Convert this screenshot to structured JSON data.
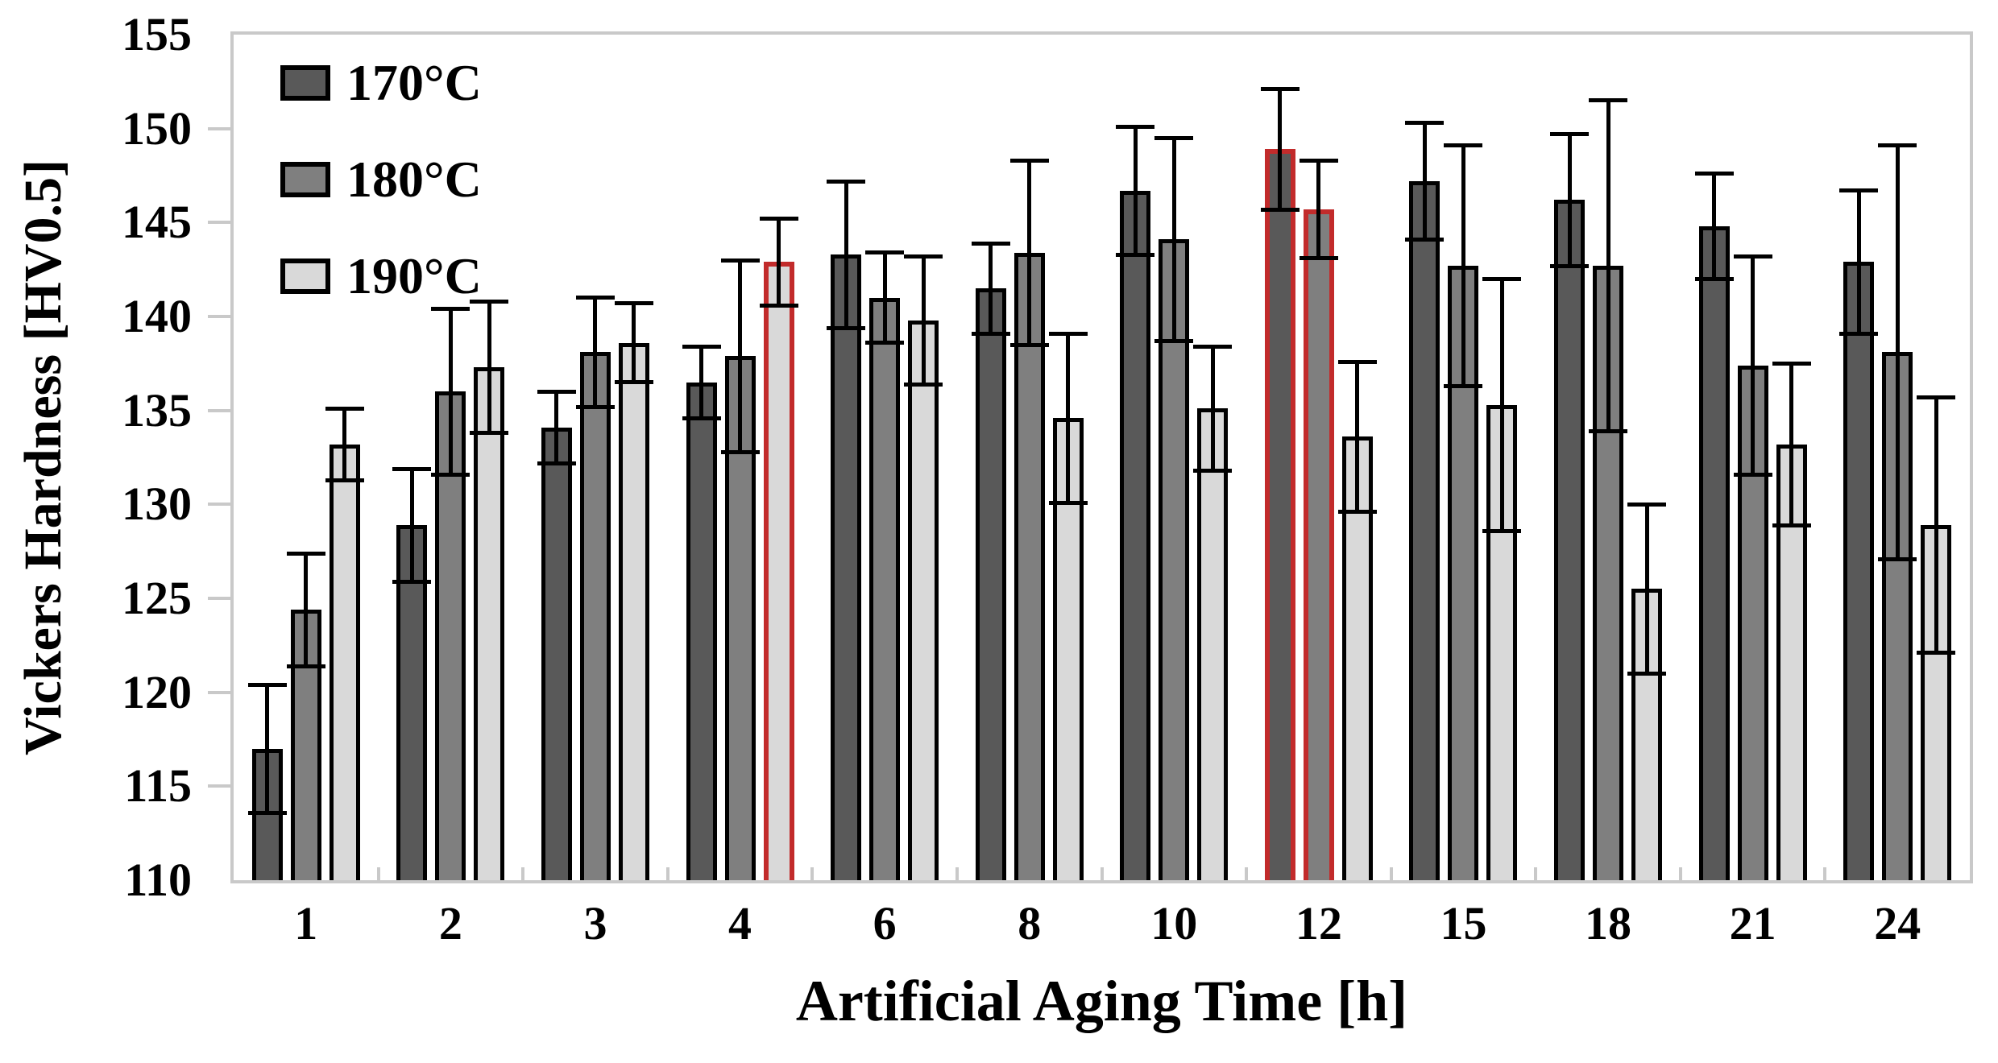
{
  "page": {
    "background": "#ffffff"
  },
  "chart_data": {
    "type": "bar",
    "title": "",
    "xlabel": "Artificial Aging Time [h]",
    "ylabel": "Vickers Hardness [HV0.5]",
    "categories": [
      "1",
      "2",
      "3",
      "4",
      "6",
      "8",
      "10",
      "12",
      "15",
      "18",
      "21",
      "24"
    ],
    "ylim": [
      110,
      155
    ],
    "ytick_step": 5,
    "ytick_labels": [
      110,
      115,
      120,
      125,
      130,
      135,
      140,
      145,
      150,
      155
    ],
    "grid": false,
    "legend_position": "top-left-inside",
    "error_bars": true,
    "series": [
      {
        "name": "170°C",
        "color": "#595959",
        "values": [
          117.0,
          128.9,
          134.1,
          136.5,
          143.3,
          141.5,
          146.7,
          148.9,
          147.2,
          146.2,
          144.8,
          142.9
        ],
        "errors": [
          3.4,
          3.0,
          1.9,
          1.9,
          3.9,
          2.4,
          3.4,
          3.2,
          3.1,
          3.5,
          2.8,
          3.8
        ]
      },
      {
        "name": "180°C",
        "color": "#7f7f7f",
        "values": [
          124.4,
          136.0,
          138.1,
          137.9,
          141.0,
          143.4,
          144.1,
          145.7,
          142.7,
          142.7,
          137.4,
          138.1
        ],
        "errors": [
          3.0,
          4.4,
          2.9,
          5.1,
          2.4,
          4.9,
          5.4,
          2.6,
          6.4,
          8.8,
          5.8,
          11.0
        ]
      },
      {
        "name": "190°C",
        "color": "#d9d9d9",
        "values": [
          133.2,
          137.3,
          138.6,
          142.9,
          139.8,
          134.6,
          135.1,
          133.6,
          135.3,
          125.5,
          133.2,
          128.9
        ],
        "errors": [
          1.9,
          3.5,
          2.1,
          2.3,
          3.4,
          4.5,
          3.3,
          4.0,
          6.7,
          4.5,
          4.3,
          6.8
        ]
      }
    ],
    "highlighted_bars": [
      {
        "category": "4",
        "series": "190°C"
      },
      {
        "category": "12",
        "series": "170°C"
      },
      {
        "category": "12",
        "series": "180°C"
      }
    ],
    "highlight_color": "#c22b2b",
    "bar_border_color": "#000000",
    "error_bar_color": "#000000",
    "axis_color": "#c9c9c9"
  }
}
